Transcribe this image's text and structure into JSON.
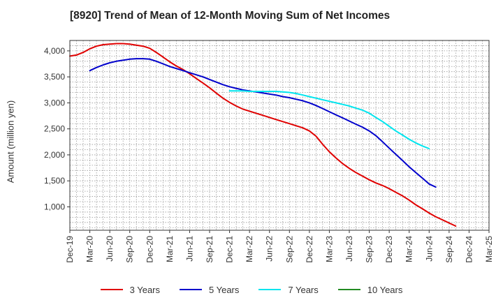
{
  "chart_data": {
    "type": "line",
    "title": "[8920]  Trend of Mean of 12-Month Moving Sum of Net Incomes",
    "xlabel": "",
    "ylabel": "Amount (million yen)",
    "x_ticks": [
      "Dec-19",
      "Mar-20",
      "Jun-20",
      "Sep-20",
      "Dec-20",
      "Mar-21",
      "Jun-21",
      "Sep-21",
      "Dec-21",
      "Mar-22",
      "Jun-22",
      "Sep-22",
      "Dec-22",
      "Mar-23",
      "Jun-23",
      "Sep-23",
      "Dec-23",
      "Mar-24",
      "Jun-24",
      "Sep-24",
      "Dec-24",
      "Mar-25"
    ],
    "y_ticks": [
      1000,
      1500,
      2000,
      2500,
      3000,
      3500,
      4000
    ],
    "y_tick_labels": [
      "1,000",
      "1,500",
      "2,000",
      "2,500",
      "3,000",
      "3,500",
      "4,000"
    ],
    "ylim": [
      550,
      4200
    ],
    "grid": true,
    "legend_position": "bottom",
    "series": [
      {
        "name": "3 Years",
        "color": "#e00000",
        "points": [
          [
            0,
            3900
          ],
          [
            0.33,
            3920
          ],
          [
            0.67,
            3970
          ],
          [
            1,
            4040
          ],
          [
            1.33,
            4090
          ],
          [
            1.67,
            4120
          ],
          [
            2,
            4130
          ],
          [
            2.33,
            4140
          ],
          [
            2.67,
            4140
          ],
          [
            3,
            4130
          ],
          [
            3.33,
            4110
          ],
          [
            3.67,
            4090
          ],
          [
            4,
            4050
          ],
          [
            4.33,
            3970
          ],
          [
            4.67,
            3880
          ],
          [
            5,
            3790
          ],
          [
            5.33,
            3710
          ],
          [
            5.67,
            3640
          ],
          [
            6,
            3560
          ],
          [
            6.33,
            3470
          ],
          [
            6.67,
            3380
          ],
          [
            7,
            3290
          ],
          [
            7.33,
            3190
          ],
          [
            7.67,
            3090
          ],
          [
            8,
            3010
          ],
          [
            8.33,
            2940
          ],
          [
            8.67,
            2880
          ],
          [
            9,
            2840
          ],
          [
            9.33,
            2800
          ],
          [
            9.67,
            2760
          ],
          [
            10,
            2720
          ],
          [
            10.33,
            2680
          ],
          [
            10.67,
            2640
          ],
          [
            11,
            2600
          ],
          [
            11.33,
            2560
          ],
          [
            11.67,
            2520
          ],
          [
            12,
            2460
          ],
          [
            12.33,
            2360
          ],
          [
            12.67,
            2200
          ],
          [
            13,
            2060
          ],
          [
            13.33,
            1940
          ],
          [
            13.67,
            1830
          ],
          [
            14,
            1740
          ],
          [
            14.33,
            1660
          ],
          [
            14.67,
            1590
          ],
          [
            15,
            1520
          ],
          [
            15.33,
            1460
          ],
          [
            15.67,
            1410
          ],
          [
            16,
            1350
          ],
          [
            16.33,
            1280
          ],
          [
            16.67,
            1210
          ],
          [
            17,
            1130
          ],
          [
            17.33,
            1040
          ],
          [
            17.67,
            960
          ],
          [
            18,
            880
          ],
          [
            18.33,
            810
          ],
          [
            18.67,
            750
          ],
          [
            19,
            690
          ],
          [
            19.33,
            630
          ]
        ]
      },
      {
        "name": "5 Years",
        "color": "#0000cc",
        "points": [
          [
            1,
            3620
          ],
          [
            1.33,
            3680
          ],
          [
            1.67,
            3730
          ],
          [
            2,
            3770
          ],
          [
            2.33,
            3800
          ],
          [
            2.67,
            3820
          ],
          [
            3,
            3840
          ],
          [
            3.33,
            3850
          ],
          [
            3.67,
            3850
          ],
          [
            4,
            3840
          ],
          [
            4.33,
            3800
          ],
          [
            4.67,
            3750
          ],
          [
            5,
            3700
          ],
          [
            5.33,
            3660
          ],
          [
            5.67,
            3620
          ],
          [
            6,
            3580
          ],
          [
            6.33,
            3540
          ],
          [
            6.67,
            3500
          ],
          [
            7,
            3450
          ],
          [
            7.33,
            3400
          ],
          [
            7.67,
            3350
          ],
          [
            8,
            3310
          ],
          [
            8.33,
            3280
          ],
          [
            8.67,
            3250
          ],
          [
            9,
            3230
          ],
          [
            9.33,
            3210
          ],
          [
            9.67,
            3190
          ],
          [
            10,
            3170
          ],
          [
            10.33,
            3150
          ],
          [
            10.67,
            3120
          ],
          [
            11,
            3100
          ],
          [
            11.33,
            3070
          ],
          [
            11.67,
            3040
          ],
          [
            12,
            3000
          ],
          [
            12.33,
            2950
          ],
          [
            12.67,
            2890
          ],
          [
            13,
            2830
          ],
          [
            13.33,
            2770
          ],
          [
            13.67,
            2710
          ],
          [
            14,
            2650
          ],
          [
            14.33,
            2590
          ],
          [
            14.67,
            2530
          ],
          [
            15,
            2460
          ],
          [
            15.33,
            2370
          ],
          [
            15.67,
            2250
          ],
          [
            16,
            2130
          ],
          [
            16.33,
            2010
          ],
          [
            16.67,
            1890
          ],
          [
            17,
            1770
          ],
          [
            17.33,
            1660
          ],
          [
            17.67,
            1550
          ],
          [
            18,
            1440
          ],
          [
            18.33,
            1380
          ]
        ]
      },
      {
        "name": "7 Years",
        "color": "#00e5ee",
        "points": [
          [
            8,
            3230
          ],
          [
            8.33,
            3230
          ],
          [
            8.67,
            3230
          ],
          [
            9,
            3220
          ],
          [
            9.33,
            3220
          ],
          [
            9.67,
            3220
          ],
          [
            10,
            3220
          ],
          [
            10.33,
            3220
          ],
          [
            10.67,
            3210
          ],
          [
            11,
            3200
          ],
          [
            11.33,
            3180
          ],
          [
            11.67,
            3150
          ],
          [
            12,
            3120
          ],
          [
            12.33,
            3090
          ],
          [
            12.67,
            3060
          ],
          [
            13,
            3030
          ],
          [
            13.33,
            3000
          ],
          [
            13.67,
            2970
          ],
          [
            14,
            2940
          ],
          [
            14.33,
            2900
          ],
          [
            14.67,
            2860
          ],
          [
            15,
            2800
          ],
          [
            15.33,
            2720
          ],
          [
            15.67,
            2640
          ],
          [
            16,
            2550
          ],
          [
            16.33,
            2460
          ],
          [
            16.67,
            2380
          ],
          [
            17,
            2300
          ],
          [
            17.33,
            2230
          ],
          [
            17.67,
            2170
          ],
          [
            18,
            2120
          ]
        ]
      },
      {
        "name": "10 Years",
        "color": "#228b22",
        "points": []
      }
    ]
  }
}
